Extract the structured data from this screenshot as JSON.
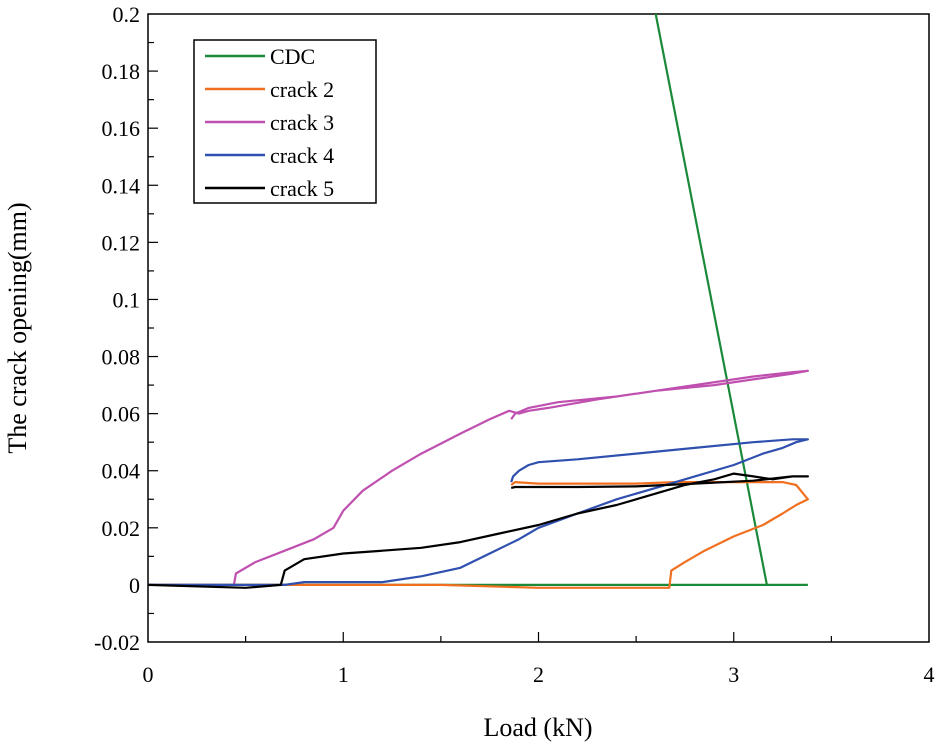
{
  "chart_data": {
    "type": "line",
    "title": "",
    "xlabel": "Load (kN)",
    "ylabel": "The crack opening(mm)",
    "xlim": [
      0,
      4
    ],
    "ylim": [
      -0.02,
      0.2
    ],
    "xticks": [
      "0",
      "1",
      "2",
      "3",
      "4"
    ],
    "yticks": [
      "-0.02",
      "0",
      "0.02",
      "0.04",
      "0.06",
      "0.08",
      "0.1",
      "0.12",
      "0.14",
      "0.16",
      "0.18",
      "0.2"
    ],
    "grid": false,
    "legend_position": "top-left",
    "series": [
      {
        "name": "CDC",
        "color": "#1a8a3a",
        "points": [
          [
            0.0,
            0.0
          ],
          [
            0.5,
            0.0
          ],
          [
            1.0,
            0.0
          ],
          [
            1.5,
            0.0
          ],
          [
            2.0,
            0.0
          ],
          [
            2.5,
            0.0
          ],
          [
            2.7,
            0.0
          ],
          [
            2.9,
            0.0
          ],
          [
            3.1,
            0.0
          ],
          [
            3.2,
            0.0
          ],
          [
            3.38,
            0.0
          ]
        ],
        "extra_segments": [
          [
            [
              2.6,
              0.2
            ],
            [
              3.17,
              0.0
            ]
          ]
        ]
      },
      {
        "name": "crack 2",
        "color": "#f07020",
        "points": [
          [
            0.0,
            0.0
          ],
          [
            0.6,
            0.0
          ],
          [
            1.0,
            0.0
          ],
          [
            1.5,
            0.0
          ],
          [
            2.0,
            -0.001
          ],
          [
            2.5,
            -0.001
          ],
          [
            2.67,
            -0.001
          ],
          [
            2.68,
            0.005
          ],
          [
            2.75,
            0.008
          ],
          [
            2.85,
            0.012
          ],
          [
            3.0,
            0.017
          ],
          [
            3.15,
            0.021
          ],
          [
            3.25,
            0.025
          ],
          [
            3.32,
            0.028
          ],
          [
            3.38,
            0.03
          ],
          [
            3.32,
            0.035
          ],
          [
            3.25,
            0.036
          ],
          [
            3.1,
            0.036
          ],
          [
            2.9,
            0.036
          ],
          [
            2.7,
            0.036
          ],
          [
            2.5,
            0.0355
          ],
          [
            2.2,
            0.0355
          ],
          [
            2.0,
            0.0355
          ],
          [
            1.88,
            0.036
          ],
          [
            1.86,
            0.035
          ]
        ]
      },
      {
        "name": "crack 3",
        "color": "#c050b0",
        "points": [
          [
            0.0,
            0.0
          ],
          [
            0.44,
            0.0
          ],
          [
            0.45,
            0.004
          ],
          [
            0.55,
            0.008
          ],
          [
            0.7,
            0.012
          ],
          [
            0.85,
            0.016
          ],
          [
            0.95,
            0.02
          ],
          [
            1.0,
            0.026
          ],
          [
            1.1,
            0.033
          ],
          [
            1.25,
            0.04
          ],
          [
            1.4,
            0.046
          ],
          [
            1.6,
            0.053
          ],
          [
            1.75,
            0.058
          ],
          [
            1.85,
            0.061
          ],
          [
            1.9,
            0.06
          ],
          [
            1.95,
            0.061
          ],
          [
            2.05,
            0.062
          ],
          [
            2.3,
            0.065
          ],
          [
            2.6,
            0.068
          ],
          [
            2.9,
            0.07
          ],
          [
            3.1,
            0.072
          ],
          [
            3.3,
            0.074
          ],
          [
            3.38,
            0.075
          ],
          [
            3.3,
            0.0745
          ],
          [
            3.1,
            0.073
          ],
          [
            2.8,
            0.07
          ],
          [
            2.4,
            0.066
          ],
          [
            2.1,
            0.064
          ],
          [
            1.95,
            0.062
          ],
          [
            1.88,
            0.06
          ],
          [
            1.86,
            0.058
          ]
        ]
      },
      {
        "name": "crack 4",
        "color": "#3050b0",
        "points": [
          [
            0.0,
            0.0
          ],
          [
            0.5,
            0.0
          ],
          [
            0.7,
            0.0
          ],
          [
            0.8,
            0.001
          ],
          [
            1.0,
            0.001
          ],
          [
            1.2,
            0.001
          ],
          [
            1.4,
            0.003
          ],
          [
            1.6,
            0.006
          ],
          [
            1.75,
            0.011
          ],
          [
            1.9,
            0.016
          ],
          [
            2.0,
            0.02
          ],
          [
            2.2,
            0.025
          ],
          [
            2.4,
            0.03
          ],
          [
            2.6,
            0.034
          ],
          [
            2.8,
            0.038
          ],
          [
            3.0,
            0.042
          ],
          [
            3.15,
            0.046
          ],
          [
            3.25,
            0.048
          ],
          [
            3.32,
            0.05
          ],
          [
            3.38,
            0.051
          ],
          [
            3.3,
            0.051
          ],
          [
            3.1,
            0.05
          ],
          [
            2.8,
            0.048
          ],
          [
            2.5,
            0.046
          ],
          [
            2.2,
            0.044
          ],
          [
            2.0,
            0.043
          ],
          [
            1.95,
            0.042
          ],
          [
            1.9,
            0.04
          ],
          [
            1.87,
            0.038
          ],
          [
            1.86,
            0.036
          ]
        ]
      },
      {
        "name": "crack 5",
        "color": "#000000",
        "points": [
          [
            0.0,
            0.0
          ],
          [
            0.5,
            -0.001
          ],
          [
            0.68,
            0.0
          ],
          [
            0.7,
            0.005
          ],
          [
            0.8,
            0.009
          ],
          [
            1.0,
            0.011
          ],
          [
            1.2,
            0.012
          ],
          [
            1.4,
            0.013
          ],
          [
            1.6,
            0.015
          ],
          [
            1.8,
            0.018
          ],
          [
            2.0,
            0.021
          ],
          [
            2.2,
            0.025
          ],
          [
            2.4,
            0.028
          ],
          [
            2.6,
            0.032
          ],
          [
            2.75,
            0.035
          ],
          [
            2.9,
            0.037
          ],
          [
            3.0,
            0.039
          ],
          [
            3.1,
            0.038
          ],
          [
            3.2,
            0.037
          ],
          [
            3.3,
            0.038
          ],
          [
            3.38,
            0.038
          ],
          [
            3.3,
            0.038
          ],
          [
            3.1,
            0.0365
          ],
          [
            2.8,
            0.0355
          ],
          [
            2.5,
            0.0345
          ],
          [
            2.2,
            0.0343
          ],
          [
            2.0,
            0.0343
          ],
          [
            1.88,
            0.0343
          ],
          [
            1.86,
            0.034
          ]
        ]
      }
    ]
  }
}
